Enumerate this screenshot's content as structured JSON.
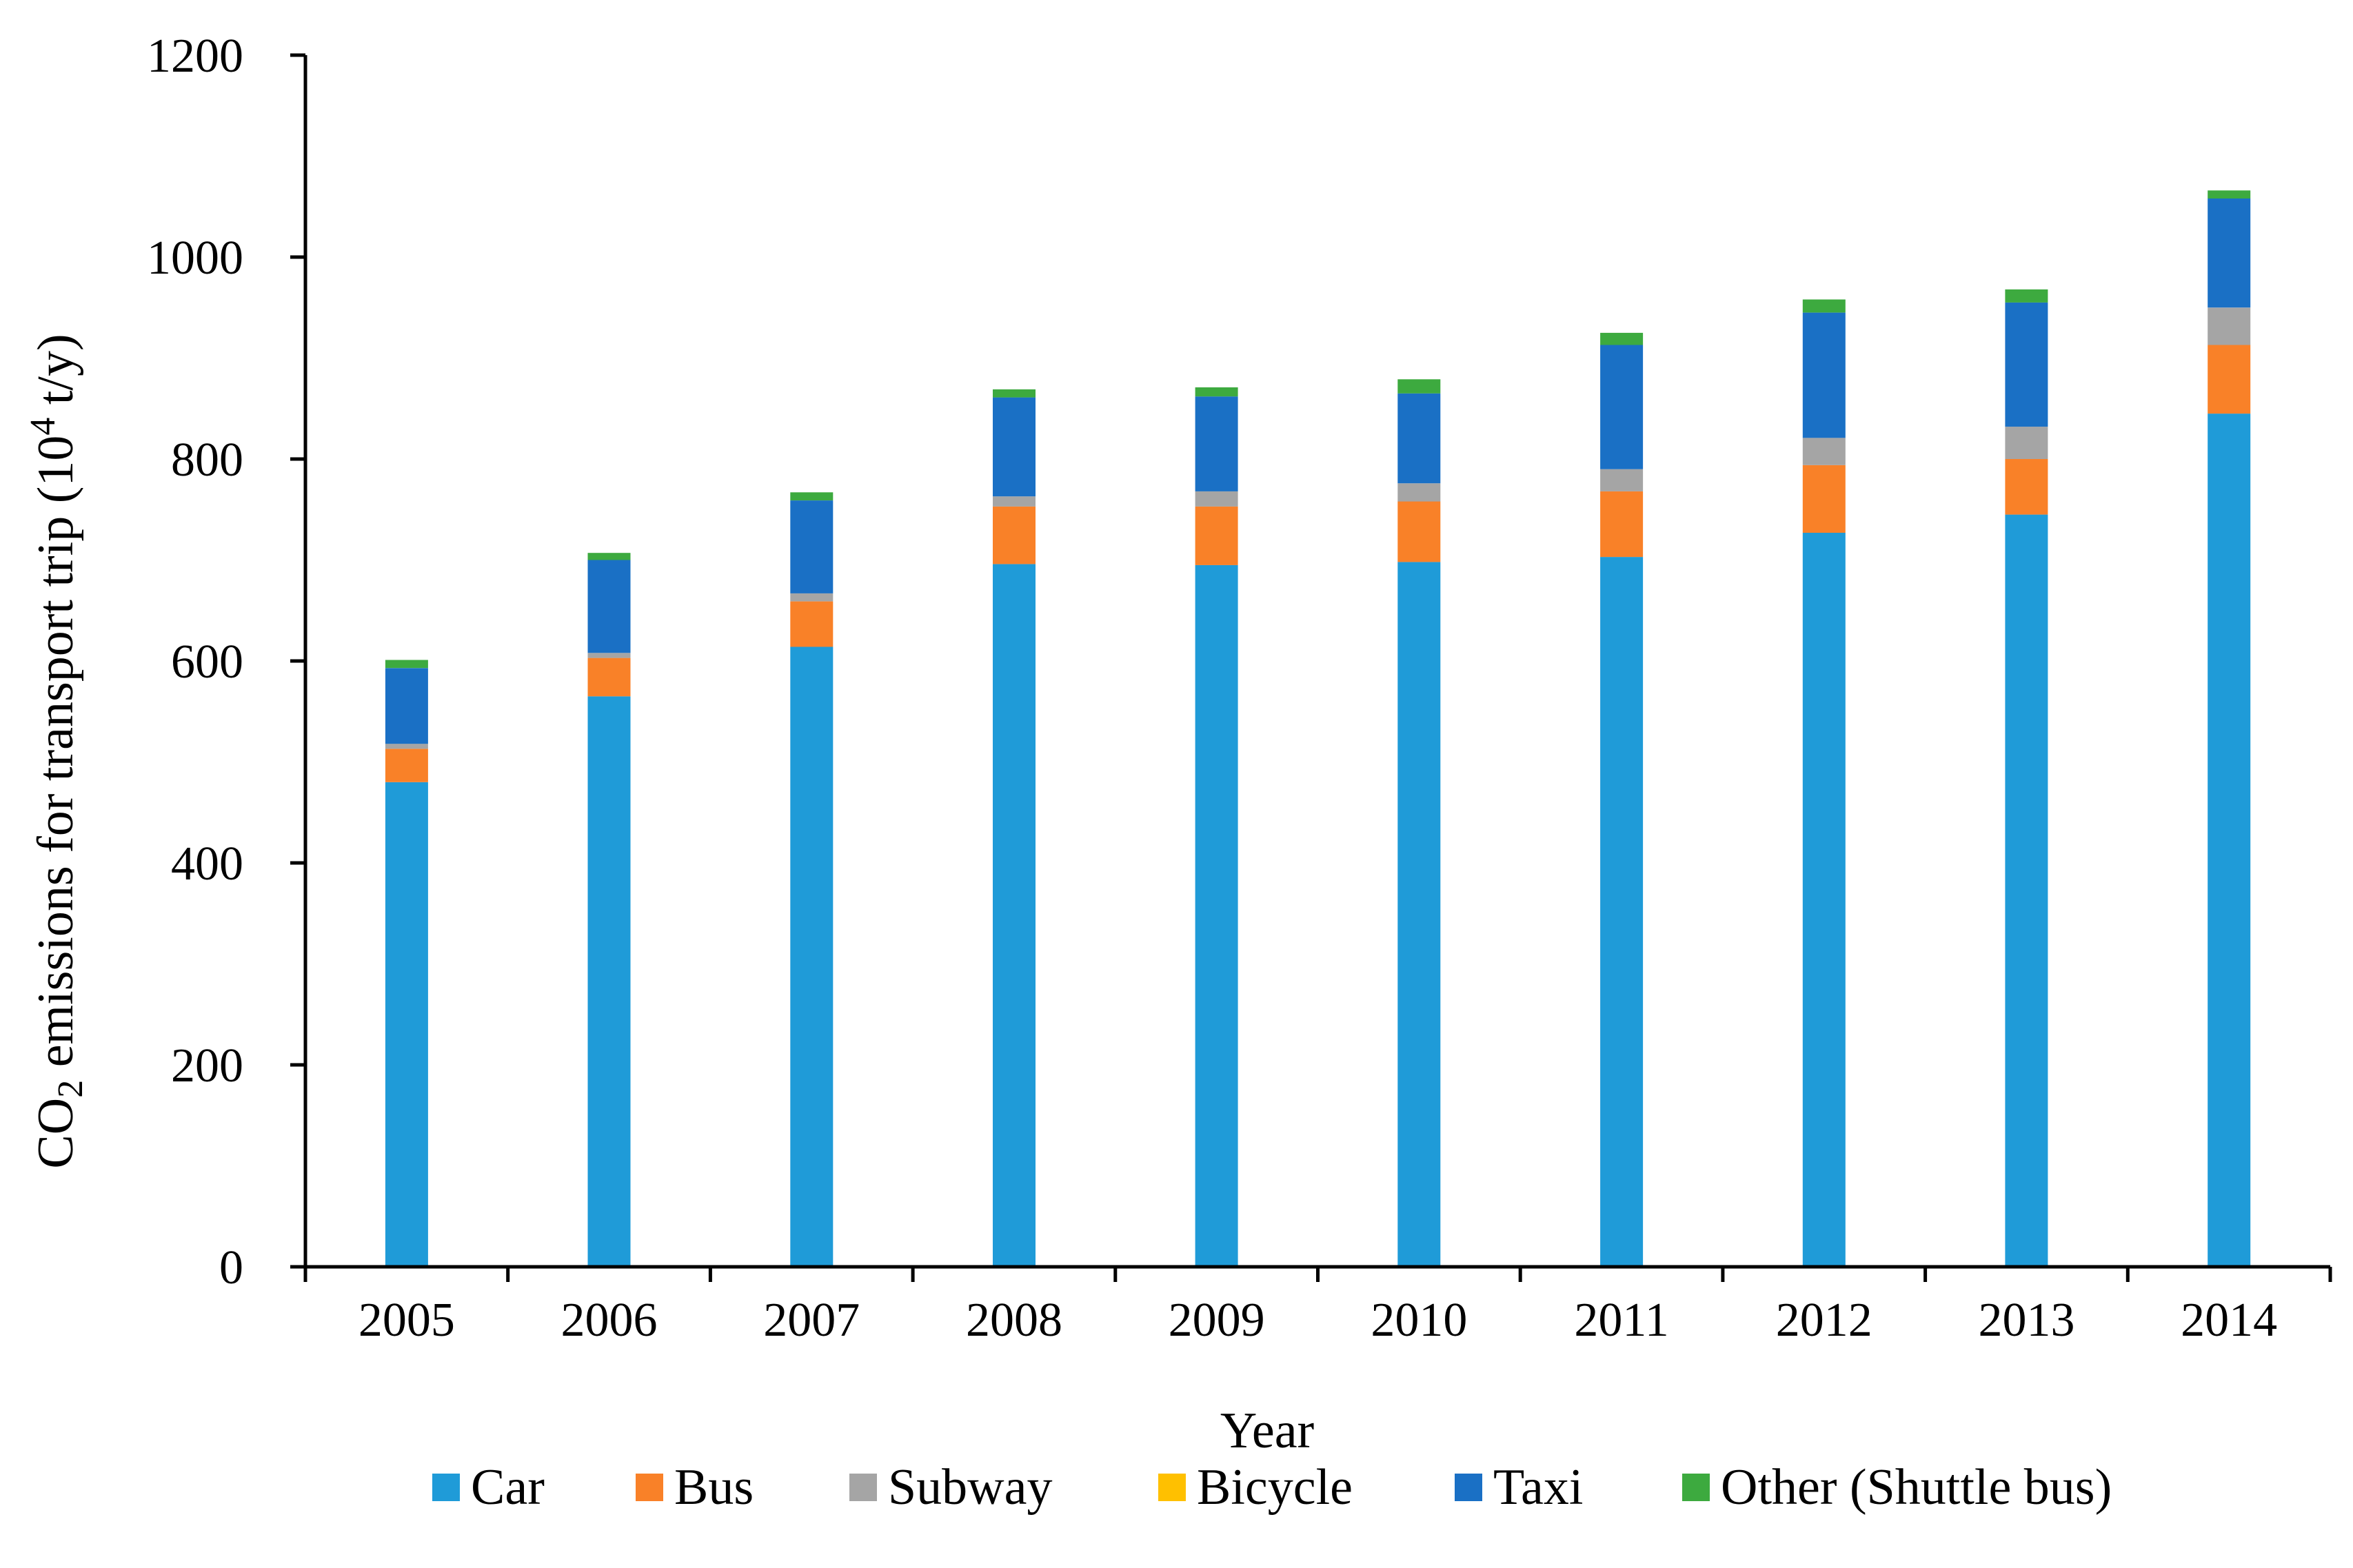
{
  "colors": {
    "car": "#1F9BD8",
    "bus": "#F98128",
    "subway": "#A5A5A5",
    "bicycle": "#FFC000",
    "taxi": "#1A70C5",
    "other": "#3DAA3F",
    "axis": "#000000"
  },
  "chart_data": {
    "type": "bar",
    "stacked": true,
    "title": "",
    "xlabel": "Year",
    "ylabel_prefix": "CO",
    "ylabel_sub": "2",
    "ylabel_mid": " emissions for transport trip (10",
    "ylabel_sup": "4",
    "ylabel_suffix": " t/y)",
    "ylim": [
      0,
      1200
    ],
    "yticks": [
      0,
      200,
      400,
      600,
      800,
      1000,
      1200
    ],
    "grid": false,
    "legend_position": "bottom",
    "categories": [
      "2005",
      "2006",
      "2007",
      "2008",
      "2009",
      "2010",
      "2011",
      "2012",
      "2013",
      "2014"
    ],
    "series": [
      {
        "key": "car",
        "name": "Car",
        "values": [
          480,
          565,
          614,
          696,
          695,
          698,
          703,
          727,
          745,
          845
        ]
      },
      {
        "key": "bus",
        "name": "Bus",
        "values": [
          33,
          38,
          45,
          57,
          58,
          60,
          65,
          67,
          55,
          68
        ]
      },
      {
        "key": "subway",
        "name": "Subway",
        "values": [
          5,
          5,
          8,
          10,
          15,
          18,
          22,
          27,
          32,
          37
        ]
      },
      {
        "key": "bicycle",
        "name": "Bicycle",
        "values": [
          0,
          0,
          0,
          0,
          0,
          0,
          0,
          0,
          0,
          0
        ]
      },
      {
        "key": "taxi",
        "name": "Taxi",
        "values": [
          75,
          92,
          92,
          98,
          94,
          89,
          123,
          124,
          123,
          108
        ]
      },
      {
        "key": "other",
        "name": "Other (Shuttle bus)",
        "values": [
          8,
          7,
          8,
          8,
          9,
          14,
          12,
          13,
          13,
          8
        ]
      }
    ]
  }
}
